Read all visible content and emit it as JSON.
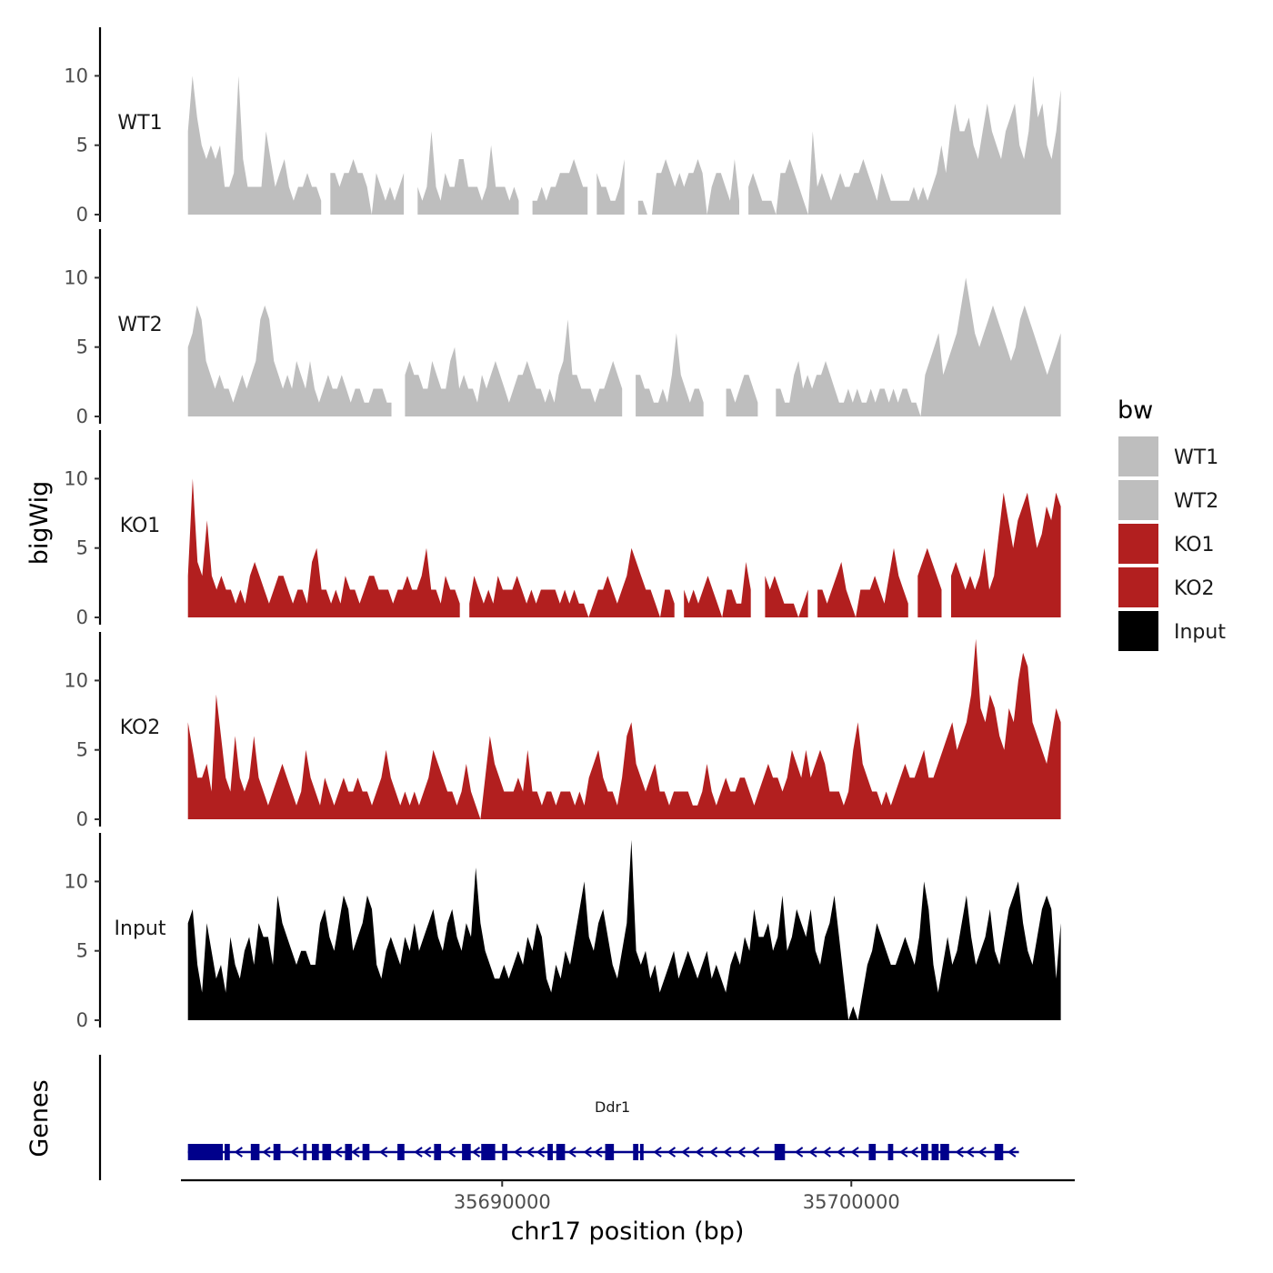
{
  "chart_data": {
    "type": "area",
    "xlabel": "chr17 position (bp)",
    "ylabel": "bigWig",
    "genes_label": "Genes",
    "xlim": [
      35680800,
      35706400
    ],
    "ylim": [
      0,
      13.5
    ],
    "x_ticks": [
      {
        "value": 35690000,
        "label": "35690000"
      },
      {
        "value": 35700000,
        "label": "35700000"
      }
    ],
    "y_ticks": [
      {
        "value": 0,
        "label": "0"
      },
      {
        "value": 5,
        "label": "5"
      },
      {
        "value": 10,
        "label": "10"
      }
    ],
    "series": [
      {
        "name": "WT1",
        "color": "#bebebe",
        "x_start": 35681000,
        "x_end": 35706000,
        "values": [
          6,
          10,
          7,
          5,
          4,
          5,
          4,
          5,
          2,
          2,
          3,
          10,
          4,
          2,
          2,
          2,
          2,
          6,
          4,
          2,
          3,
          4,
          2,
          1,
          2,
          2,
          3,
          2,
          2,
          1,
          2,
          3,
          3,
          2,
          3,
          3,
          4,
          3,
          3,
          2,
          0,
          3,
          2,
          1,
          2,
          1,
          2,
          3,
          2,
          3,
          2,
          1,
          2,
          6,
          2,
          1,
          3,
          2,
          2,
          4,
          4,
          2,
          2,
          2,
          1,
          2,
          5,
          2,
          2,
          2,
          1,
          2,
          1,
          3,
          2,
          1,
          1,
          2,
          1,
          2,
          2,
          3,
          3,
          3,
          4,
          3,
          2,
          2,
          3,
          3,
          2,
          2,
          1,
          1,
          2,
          4,
          3,
          2,
          1,
          1,
          0,
          0,
          3,
          3,
          4,
          3,
          2,
          3,
          2,
          3,
          3,
          4,
          3,
          0,
          2,
          3,
          3,
          2,
          1,
          4,
          1,
          0,
          2,
          3,
          2,
          1,
          1,
          1,
          0,
          3,
          3,
          4,
          3,
          2,
          1,
          0,
          6,
          2,
          3,
          2,
          1,
          2,
          3,
          2,
          2,
          3,
          3,
          4,
          3,
          2,
          1,
          3,
          2,
          1,
          1,
          1,
          1,
          1,
          2,
          1,
          2,
          1,
          2,
          3,
          5,
          3,
          6,
          8,
          6,
          6,
          7,
          5,
          4,
          6,
          8,
          6,
          5,
          4,
          6,
          7,
          8,
          5,
          4,
          6,
          10,
          7,
          8,
          5,
          4,
          6,
          9
        ],
        "gaps": [
          [
            35684900,
            35685050
          ],
          [
            35687300,
            35687450
          ],
          [
            35690600,
            35690750
          ],
          [
            35692550,
            35692700
          ],
          [
            35693550,
            35693850
          ],
          [
            35696850,
            35697000
          ]
        ]
      },
      {
        "name": "WT2",
        "color": "#bebebe",
        "x_start": 35681000,
        "x_end": 35706000,
        "values": [
          5,
          6,
          8,
          7,
          4,
          3,
          2,
          3,
          2,
          2,
          1,
          2,
          3,
          2,
          3,
          4,
          7,
          8,
          7,
          4,
          3,
          2,
          3,
          2,
          4,
          3,
          2,
          4,
          2,
          1,
          2,
          3,
          2,
          2,
          3,
          2,
          1,
          2,
          2,
          1,
          1,
          2,
          2,
          2,
          1,
          1,
          1,
          0,
          3,
          4,
          3,
          3,
          2,
          2,
          4,
          3,
          2,
          2,
          4,
          5,
          2,
          3,
          2,
          2,
          1,
          3,
          2,
          3,
          4,
          3,
          2,
          1,
          2,
          3,
          3,
          4,
          3,
          2,
          2,
          1,
          2,
          1,
          3,
          4,
          7,
          3,
          3,
          2,
          2,
          2,
          1,
          2,
          2,
          3,
          4,
          3,
          2,
          2,
          2,
          3,
          3,
          2,
          2,
          1,
          1,
          2,
          1,
          3,
          6,
          3,
          2,
          1,
          2,
          2,
          1,
          1,
          2,
          3,
          3,
          2,
          2,
          1,
          2,
          3,
          3,
          2,
          1,
          1,
          0,
          3,
          2,
          2,
          1,
          1,
          3,
          4,
          2,
          3,
          2,
          3,
          3,
          4,
          3,
          2,
          1,
          1,
          2,
          1,
          2,
          1,
          1,
          2,
          1,
          2,
          2,
          1,
          2,
          1,
          2,
          2,
          1,
          1,
          0,
          3,
          4,
          5,
          6,
          3,
          4,
          5,
          6,
          8,
          10,
          8,
          6,
          5,
          6,
          7,
          8,
          7,
          6,
          5,
          4,
          5,
          7,
          8,
          7,
          6,
          5,
          4,
          3,
          4,
          5,
          6
        ],
        "gaps": [
          [
            35686950,
            35687150
          ],
          [
            35687350,
            35687450
          ],
          [
            35693550,
            35693700
          ],
          [
            35695850,
            35696350
          ],
          [
            35697450,
            35697750
          ],
          [
            35700450,
            35700500
          ]
        ]
      },
      {
        "name": "KO1",
        "color": "#b21f1f",
        "x_start": 35681000,
        "x_end": 35706000,
        "values": [
          3,
          10,
          4,
          3,
          7,
          3,
          2,
          3,
          2,
          2,
          1,
          2,
          1,
          3,
          4,
          3,
          2,
          1,
          2,
          3,
          3,
          2,
          1,
          2,
          2,
          1,
          4,
          5,
          2,
          2,
          1,
          2,
          1,
          3,
          2,
          2,
          1,
          2,
          3,
          3,
          2,
          2,
          2,
          1,
          2,
          2,
          3,
          2,
          2,
          3,
          5,
          2,
          2,
          1,
          3,
          2,
          2,
          1,
          2,
          1,
          3,
          2,
          1,
          2,
          1,
          3,
          2,
          2,
          2,
          3,
          2,
          1,
          2,
          1,
          2,
          2,
          2,
          2,
          1,
          2,
          1,
          2,
          1,
          1,
          0,
          1,
          2,
          2,
          3,
          2,
          1,
          2,
          3,
          5,
          4,
          3,
          2,
          2,
          1,
          0,
          2,
          2,
          1,
          2,
          2,
          1,
          2,
          1,
          2,
          3,
          2,
          1,
          0,
          2,
          2,
          1,
          1,
          4,
          2,
          2,
          1,
          3,
          2,
          3,
          2,
          1,
          1,
          1,
          0,
          1,
          2,
          3,
          2,
          2,
          1,
          2,
          3,
          4,
          2,
          1,
          0,
          2,
          2,
          2,
          3,
          2,
          1,
          3,
          5,
          3,
          2,
          1,
          2,
          3,
          4,
          5,
          4,
          3,
          2,
          2,
          3,
          4,
          3,
          2,
          3,
          2,
          3,
          5,
          2,
          3,
          6,
          9,
          7,
          5,
          7,
          8,
          9,
          7,
          5,
          6,
          8,
          7,
          9,
          8
        ],
        "gaps": [
          [
            35685850,
            35685900
          ],
          [
            35688800,
            35688950
          ],
          [
            35691600,
            35691650
          ],
          [
            35695000,
            35695150
          ],
          [
            35697150,
            35697400
          ],
          [
            35698800,
            35698950
          ],
          [
            35701650,
            35701800
          ],
          [
            35702650,
            35702800
          ]
        ]
      },
      {
        "name": "KO2",
        "color": "#b21f1f",
        "x_start": 35681000,
        "x_end": 35706000,
        "values": [
          7,
          5,
          3,
          3,
          4,
          2,
          9,
          6,
          3,
          2,
          6,
          3,
          2,
          3,
          6,
          3,
          2,
          1,
          2,
          3,
          4,
          3,
          2,
          1,
          2,
          5,
          3,
          2,
          1,
          3,
          2,
          1,
          2,
          3,
          2,
          2,
          3,
          2,
          2,
          1,
          2,
          3,
          5,
          3,
          2,
          1,
          2,
          1,
          2,
          1,
          2,
          3,
          5,
          4,
          3,
          2,
          2,
          1,
          2,
          4,
          2,
          1,
          0,
          3,
          6,
          4,
          3,
          2,
          2,
          2,
          3,
          2,
          5,
          2,
          2,
          1,
          2,
          2,
          1,
          2,
          2,
          2,
          1,
          2,
          1,
          3,
          4,
          5,
          3,
          2,
          2,
          1,
          3,
          6,
          7,
          4,
          3,
          2,
          3,
          4,
          2,
          2,
          1,
          2,
          2,
          2,
          2,
          1,
          1,
          2,
          4,
          2,
          1,
          2,
          3,
          2,
          2,
          3,
          3,
          2,
          1,
          2,
          3,
          4,
          3,
          3,
          2,
          3,
          5,
          4,
          3,
          5,
          3,
          4,
          5,
          4,
          2,
          2,
          2,
          1,
          2,
          5,
          7,
          4,
          3,
          2,
          2,
          1,
          2,
          1,
          2,
          3,
          4,
          3,
          3,
          4,
          5,
          3,
          3,
          4,
          5,
          6,
          7,
          5,
          6,
          7,
          9,
          13,
          8,
          7,
          9,
          8,
          6,
          5,
          8,
          7,
          10,
          12,
          11,
          7,
          6,
          5,
          4,
          6,
          8,
          7
        ],
        "gaps": []
      },
      {
        "name": "Input",
        "color": "#000000",
        "x_start": 35681000,
        "x_end": 35706000,
        "values": [
          7,
          8,
          4,
          2,
          7,
          5,
          3,
          4,
          2,
          6,
          4,
          3,
          5,
          6,
          4,
          7,
          6,
          6,
          4,
          9,
          7,
          6,
          5,
          4,
          5,
          5,
          4,
          4,
          7,
          8,
          6,
          5,
          7,
          9,
          8,
          5,
          6,
          7,
          9,
          8,
          4,
          3,
          5,
          6,
          5,
          4,
          6,
          5,
          7,
          5,
          6,
          7,
          8,
          6,
          5,
          7,
          8,
          6,
          5,
          7,
          6,
          11,
          7,
          5,
          4,
          3,
          3,
          4,
          3,
          4,
          5,
          4,
          6,
          5,
          7,
          6,
          3,
          2,
          4,
          3,
          5,
          4,
          6,
          8,
          10,
          6,
          5,
          7,
          8,
          6,
          4,
          3,
          5,
          7,
          13,
          5,
          4,
          5,
          3,
          4,
          2,
          3,
          4,
          5,
          3,
          4,
          5,
          4,
          3,
          4,
          5,
          3,
          4,
          3,
          2,
          4,
          5,
          4,
          6,
          5,
          8,
          6,
          6,
          7,
          5,
          6,
          9,
          5,
          6,
          8,
          7,
          6,
          8,
          5,
          4,
          6,
          7,
          9,
          6,
          3,
          0,
          1,
          0,
          2,
          4,
          5,
          7,
          6,
          5,
          4,
          4,
          5,
          6,
          5,
          4,
          6,
          10,
          8,
          4,
          2,
          4,
          6,
          4,
          5,
          7,
          9,
          6,
          4,
          5,
          6,
          8,
          5,
          4,
          6,
          8,
          9,
          10,
          7,
          5,
          4,
          6,
          8,
          9,
          8,
          3,
          7
        ],
        "gaps": []
      }
    ],
    "gene": {
      "name": "Ddr1",
      "color": "#00008b",
      "start": 35681000,
      "end": 35704800,
      "strand": "-",
      "exons": [
        [
          35681000,
          35682000
        ],
        [
          35682050,
          35682200
        ],
        [
          35682800,
          35683050
        ],
        [
          35683450,
          35683650
        ],
        [
          35684300,
          35684400
        ],
        [
          35684550,
          35684750
        ],
        [
          35684850,
          35685100
        ],
        [
          35685500,
          35685700
        ],
        [
          35686000,
          35686200
        ],
        [
          35687000,
          35687200
        ],
        [
          35688050,
          35688250
        ],
        [
          35688850,
          35689100
        ],
        [
          35689400,
          35689800
        ],
        [
          35690000,
          35690150
        ],
        [
          35691300,
          35691450
        ],
        [
          35691550,
          35691800
        ],
        [
          35692950,
          35693200
        ],
        [
          35693750,
          35693900
        ],
        [
          35693950,
          35694050
        ],
        [
          35697800,
          35698100
        ],
        [
          35700500,
          35700700
        ],
        [
          35701050,
          35701200
        ],
        [
          35702000,
          35702200
        ],
        [
          35702300,
          35702500
        ],
        [
          35702550,
          35702800
        ],
        [
          35704100,
          35704350
        ]
      ],
      "arrow_positions": [
        35682450,
        35683250,
        35684050,
        35685300,
        35685800,
        35686600,
        35687600,
        35687850,
        35688550,
        35689250,
        35690450,
        35690800,
        35691100,
        35692000,
        35692450,
        35692750,
        35694450,
        35694850,
        35695250,
        35695650,
        35696050,
        35696450,
        35696850,
        35697250,
        35698500,
        35698900,
        35699300,
        35699700,
        35700100,
        35701500,
        35701800,
        35703100,
        35703400,
        35703750,
        35704600
      ]
    },
    "legend": {
      "title": "bw",
      "position": "right",
      "entries": [
        {
          "label": "WT1",
          "color": "#bebebe"
        },
        {
          "label": "WT2",
          "color": "#bebebe"
        },
        {
          "label": "KO1",
          "color": "#b21f1f"
        },
        {
          "label": "KO2",
          "color": "#b21f1f"
        },
        {
          "label": "Input",
          "color": "#000000"
        }
      ]
    }
  }
}
